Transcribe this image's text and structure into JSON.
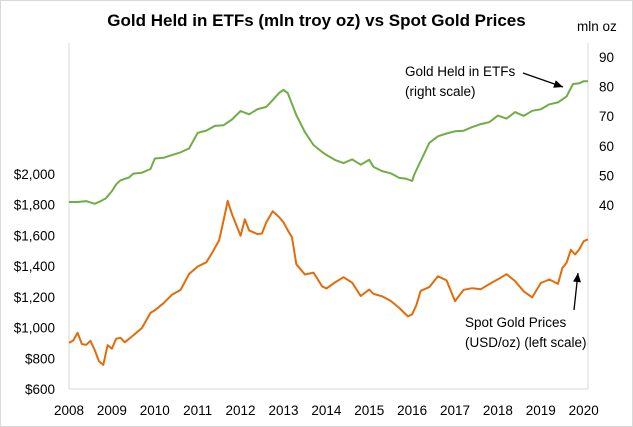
{
  "chart_data": {
    "type": "line",
    "title": "Gold Held in ETFs (mln troy oz) vs Spot Gold Prices",
    "right_axis_unit": "mln oz",
    "grid": "none",
    "x_axis": {
      "range": [
        2008,
        2020.1
      ],
      "tick_labels": [
        "2008",
        "2009",
        "2010",
        "2011",
        "2012",
        "2013",
        "2014",
        "2015",
        "2016",
        "2017",
        "2018",
        "2019",
        "2020"
      ]
    },
    "left_axis": {
      "range": [
        600,
        2000
      ],
      "tick_labels": [
        "$600",
        "$800",
        "$1,000",
        "$1,200",
        "$1,400",
        "$1,600",
        "$1,800",
        "$2,000"
      ]
    },
    "right_axis": {
      "range": [
        40,
        90
      ],
      "tick_labels": [
        "40",
        "50",
        "60",
        "70",
        "80",
        "90"
      ]
    },
    "series": [
      {
        "axis": "right",
        "color": "#70ad47",
        "x": [
          2008.0,
          2008.2,
          2008.4,
          2008.6,
          2008.75,
          2008.85,
          2009.0,
          2009.1,
          2009.2,
          2009.4,
          2009.5,
          2009.7,
          2009.9,
          2010.0,
          2010.2,
          2010.4,
          2010.6,
          2010.8,
          2011.0,
          2011.2,
          2011.4,
          2011.6,
          2011.8,
          2012.0,
          2012.2,
          2012.4,
          2012.6,
          2012.8,
          2012.9,
          2013.0,
          2013.1,
          2013.2,
          2013.3,
          2013.5,
          2013.7,
          2013.9,
          2014.0,
          2014.2,
          2014.4,
          2014.6,
          2014.8,
          2015.0,
          2015.1,
          2015.3,
          2015.5,
          2015.7,
          2015.85,
          2016.0,
          2016.05,
          2016.2,
          2016.4,
          2016.6,
          2016.8,
          2017.0,
          2017.2,
          2017.4,
          2017.6,
          2017.8,
          2018.0,
          2018.2,
          2018.4,
          2018.6,
          2018.8,
          2019.0,
          2019.2,
          2019.4,
          2019.6,
          2019.75,
          2019.9,
          2020.0,
          2020.1
        ],
        "values": [
          41.0,
          41.2,
          41.0,
          40.8,
          41.0,
          42.5,
          44.5,
          47.0,
          48.5,
          49.0,
          51.0,
          50.5,
          52.5,
          55.5,
          56.0,
          57.0,
          57.5,
          59.5,
          64.0,
          65.5,
          66.5,
          67.0,
          69.0,
          71.5,
          71.0,
          72.0,
          73.5,
          76.0,
          78.0,
          79.0,
          77.5,
          74.5,
          70.0,
          65.0,
          60.0,
          58.0,
          57.0,
          55.0,
          54.5,
          55.0,
          54.0,
          55.0,
          53.0,
          51.5,
          50.5,
          49.5,
          48.5,
          48.5,
          50.0,
          55.0,
          61.0,
          63.0,
          64.5,
          64.5,
          65.5,
          66.0,
          67.5,
          68.0,
          70.0,
          69.5,
          71.0,
          70.5,
          71.5,
          72.5,
          74.0,
          74.5,
          77.0,
          80.5,
          81.5,
          81.5,
          82.0
        ]
      },
      {
        "axis": "left",
        "color": "#e36c0a",
        "x": [
          2008.0,
          2008.1,
          2008.2,
          2008.3,
          2008.4,
          2008.5,
          2008.6,
          2008.7,
          2008.8,
          2008.9,
          2009.0,
          2009.1,
          2009.2,
          2009.3,
          2009.5,
          2009.7,
          2009.9,
          2010.0,
          2010.2,
          2010.4,
          2010.6,
          2010.8,
          2011.0,
          2011.2,
          2011.35,
          2011.5,
          2011.6,
          2011.7,
          2011.8,
          2012.0,
          2012.1,
          2012.2,
          2012.4,
          2012.5,
          2012.6,
          2012.75,
          2012.9,
          2013.0,
          2013.1,
          2013.2,
          2013.3,
          2013.5,
          2013.7,
          2013.9,
          2014.0,
          2014.2,
          2014.4,
          2014.6,
          2014.8,
          2015.0,
          2015.1,
          2015.3,
          2015.5,
          2015.7,
          2015.9,
          2016.0,
          2016.1,
          2016.2,
          2016.4,
          2016.6,
          2016.8,
          2017.0,
          2017.2,
          2017.4,
          2017.6,
          2017.8,
          2018.0,
          2018.2,
          2018.4,
          2018.6,
          2018.8,
          2019.0,
          2019.2,
          2019.4,
          2019.5,
          2019.6,
          2019.7,
          2019.8,
          2019.9,
          2020.0,
          2020.1
        ],
        "values": [
          900,
          920,
          960,
          900,
          880,
          920,
          850,
          780,
          760,
          880,
          870,
          920,
          940,
          900,
          950,
          1000,
          1090,
          1120,
          1150,
          1220,
          1240,
          1350,
          1400,
          1420,
          1500,
          1560,
          1700,
          1820,
          1740,
          1600,
          1700,
          1640,
          1600,
          1620,
          1680,
          1760,
          1720,
          1680,
          1640,
          1580,
          1420,
          1340,
          1360,
          1270,
          1250,
          1300,
          1320,
          1300,
          1200,
          1250,
          1220,
          1200,
          1180,
          1120,
          1080,
          1080,
          1150,
          1240,
          1260,
          1340,
          1300,
          1180,
          1240,
          1260,
          1250,
          1280,
          1320,
          1340,
          1310,
          1230,
          1200,
          1290,
          1310,
          1290,
          1380,
          1430,
          1500,
          1480,
          1510,
          1560,
          1580
        ]
      }
    ],
    "annotations": [
      {
        "text": "Gold Held in ETFs\n(right scale)"
      },
      {
        "text": "Spot Gold Prices\n(USD/oz)  (left scale)"
      }
    ]
  }
}
